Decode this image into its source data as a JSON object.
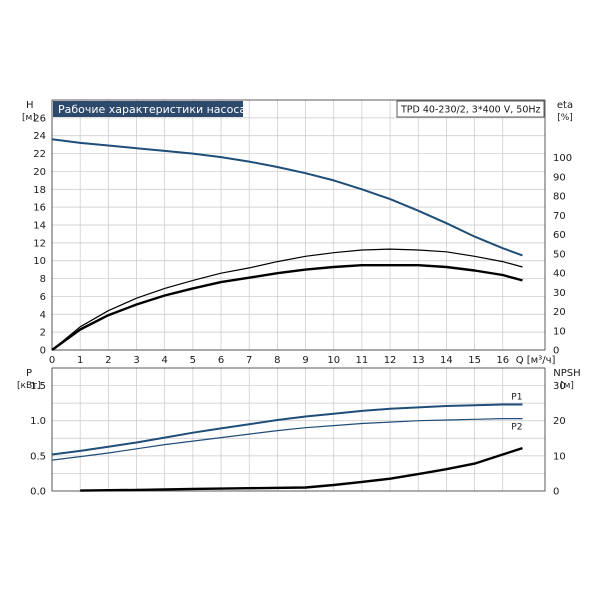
{
  "title": "Рабочие характеристики насоса",
  "model": "TPD 40-230/2, 3*400 V, 50Hz",
  "chart_data": [
    {
      "type": "line",
      "title": "Рабочие характеристики насоса",
      "xlabel": "Q [м³/ч]",
      "ylabel": "H [м]",
      "y2label": "eta [%]",
      "xlim": [
        0,
        17.5
      ],
      "ylim": [
        0,
        28
      ],
      "y2lim": [
        0,
        130
      ],
      "xticks": [
        "0",
        "1",
        "2",
        "3",
        "4",
        "5",
        "6",
        "7",
        "8",
        "9",
        "10",
        "11",
        "12",
        "13",
        "14",
        "15",
        "16"
      ],
      "yticks": [
        "0",
        "2",
        "4",
        "6",
        "8",
        "10",
        "12",
        "14",
        "16",
        "18",
        "20",
        "22",
        "24",
        "26"
      ],
      "y2ticks": [
        "0",
        "10",
        "20",
        "30",
        "40",
        "50",
        "60",
        "70",
        "80",
        "90",
        "100"
      ],
      "grid": true,
      "series": [
        {
          "name": "",
          "axis": "left",
          "color": "#1f4e79",
          "x": [
            0,
            1,
            2,
            3,
            4,
            5,
            6,
            7,
            8,
            9,
            10,
            11,
            12,
            13,
            14,
            15,
            16,
            16.7
          ],
          "y": [
            23.6,
            23.2,
            22.9,
            22.6,
            22.3,
            22.0,
            21.6,
            21.1,
            20.5,
            19.8,
            19.0,
            18.0,
            16.9,
            15.6,
            14.2,
            12.7,
            11.4,
            10.6
          ]
        },
        {
          "name": "",
          "axis": "left",
          "color": "#000000",
          "x": [
            0,
            1,
            2,
            3,
            4,
            5,
            6,
            7,
            8,
            9,
            10,
            11,
            12,
            13,
            14,
            15,
            16,
            16.7
          ],
          "y": [
            0,
            2.6,
            4.4,
            5.8,
            6.9,
            7.8,
            8.6,
            9.2,
            9.9,
            10.5,
            10.9,
            11.2,
            11.3,
            11.2,
            11.0,
            10.5,
            9.9,
            9.3
          ]
        },
        {
          "name": "",
          "axis": "left",
          "color": "#000000",
          "x": [
            0,
            1,
            2,
            3,
            4,
            5,
            6,
            7,
            8,
            9,
            10,
            11,
            12,
            13,
            14,
            15,
            16,
            16.7
          ],
          "y": [
            0,
            2.3,
            3.9,
            5.1,
            6.1,
            6.9,
            7.6,
            8.1,
            8.6,
            9.0,
            9.3,
            9.5,
            9.5,
            9.5,
            9.3,
            8.9,
            8.4,
            7.8
          ]
        }
      ]
    },
    {
      "type": "line",
      "xlabel": "",
      "ylabel": "P [кВт]",
      "y2label": "NPSH [м]",
      "xlim": [
        0,
        17.5
      ],
      "ylim": [
        0,
        1.75
      ],
      "y2lim": [
        0,
        35
      ],
      "yticks": [
        "0.0",
        "0.5",
        "1.0",
        "1.5"
      ],
      "y2ticks": [
        "0",
        "10",
        "20",
        "30"
      ],
      "grid": true,
      "series": [
        {
          "name": "P1",
          "axis": "left",
          "color": "#1f4e79",
          "x": [
            0,
            1,
            2,
            3,
            4,
            5,
            6,
            7,
            8,
            9,
            10,
            11,
            12,
            13,
            14,
            15,
            16,
            16.7
          ],
          "y": [
            0.52,
            0.57,
            0.63,
            0.69,
            0.76,
            0.83,
            0.89,
            0.95,
            1.01,
            1.06,
            1.1,
            1.14,
            1.17,
            1.19,
            1.21,
            1.22,
            1.23,
            1.23
          ]
        },
        {
          "name": "P2",
          "axis": "left",
          "color": "#1f4e79",
          "x": [
            0,
            1,
            2,
            3,
            4,
            5,
            6,
            7,
            8,
            9,
            10,
            11,
            12,
            13,
            14,
            15,
            16,
            16.7
          ],
          "y": [
            0.44,
            0.49,
            0.54,
            0.6,
            0.66,
            0.71,
            0.76,
            0.81,
            0.86,
            0.9,
            0.93,
            0.96,
            0.98,
            1.0,
            1.01,
            1.02,
            1.03,
            1.03
          ]
        },
        {
          "name": "",
          "axis": "right",
          "color": "#000000",
          "x": [
            1,
            3,
            5,
            7,
            9,
            10,
            11,
            12,
            13,
            14,
            15,
            16,
            16.7
          ],
          "y": [
            0.1,
            0.3,
            0.6,
            0.8,
            1.0,
            1.7,
            2.6,
            3.5,
            4.8,
            6.2,
            7.8,
            10.4,
            12.2
          ]
        }
      ]
    }
  ]
}
